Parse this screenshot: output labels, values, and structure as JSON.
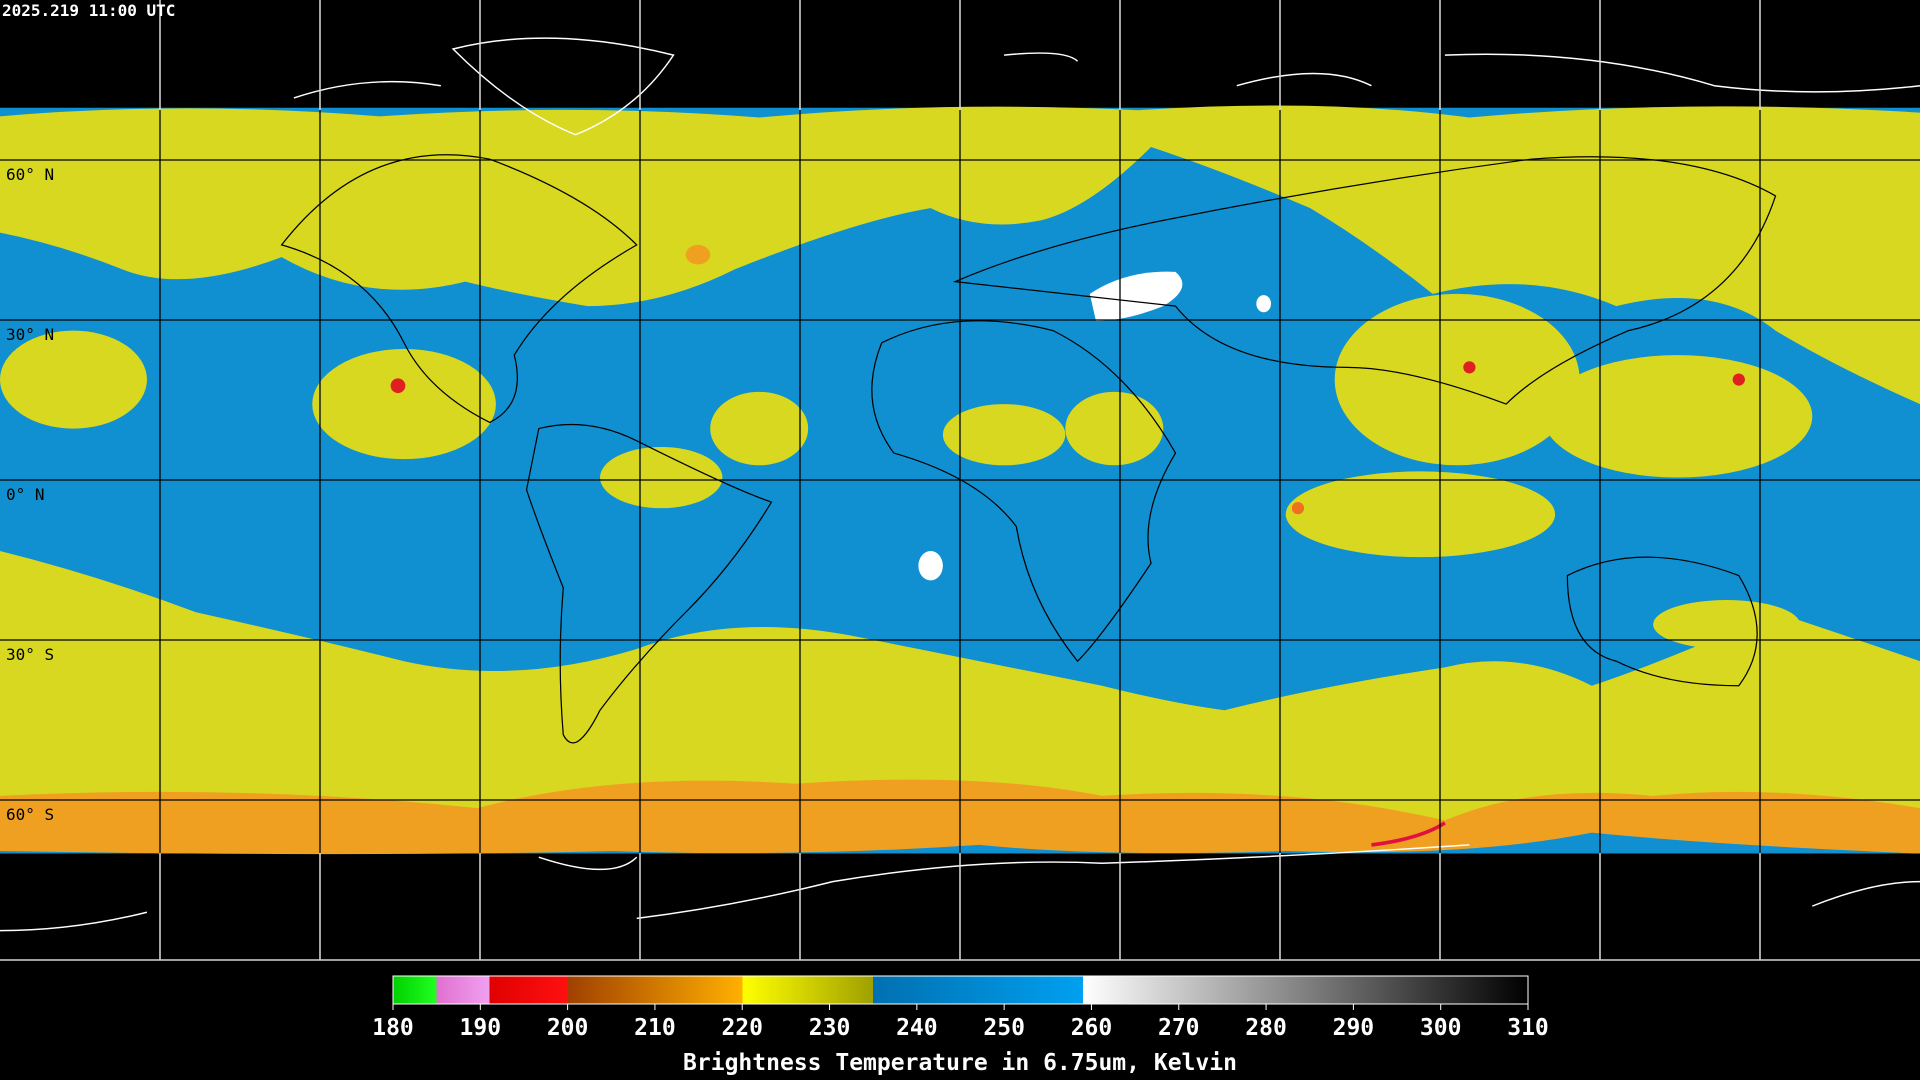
{
  "header": {
    "timestamp": "2025.219 11:00 UTC"
  },
  "map": {
    "latitude_labels": [
      "60° N",
      "30° N",
      "0° N",
      "30° S",
      "60° S"
    ]
  },
  "colorbar": {
    "ticks": [
      180,
      190,
      200,
      210,
      220,
      230,
      240,
      250,
      260,
      270,
      280,
      290,
      300,
      310
    ],
    "caption": "Brightness Temperature in 6.75um, Kelvin"
  }
}
